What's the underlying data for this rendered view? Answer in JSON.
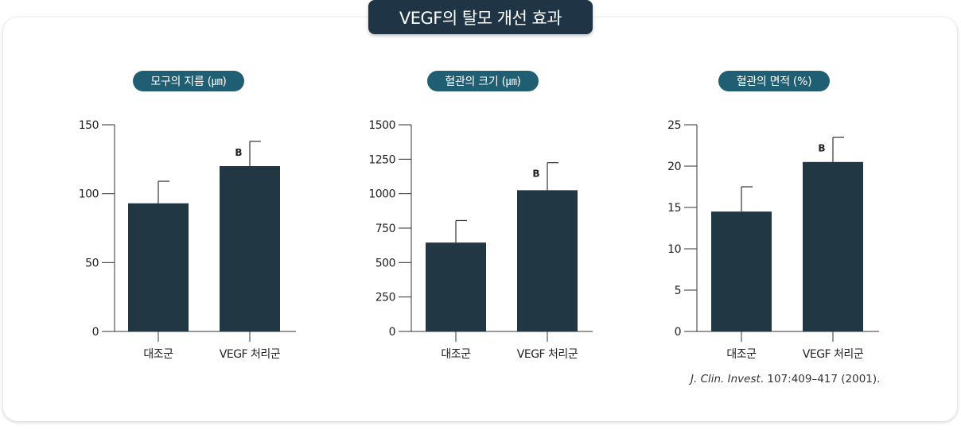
{
  "page_title": "VEGF의 탈모 개선 효과",
  "colors": {
    "bar": "#223744",
    "axis": "#333333",
    "pill": "#1f5e73",
    "title_bg": "#1f3545"
  },
  "chart_data": [
    {
      "type": "bar",
      "title": "모구의 지름 (㎛)",
      "categories": [
        "대조군",
        "VEGF 처리군"
      ],
      "values": [
        93,
        120
      ],
      "errors": [
        16,
        18
      ],
      "annotations": [
        "",
        "B"
      ],
      "ylim": [
        0,
        150
      ],
      "yticks": [
        0,
        50,
        100,
        150
      ],
      "ytick_labels": [
        "0",
        "50",
        "100",
        "150"
      ]
    },
    {
      "type": "bar",
      "title": "혈관의 크기 (㎛)",
      "categories": [
        "대조군",
        "VEGF 처리군"
      ],
      "values": [
        645,
        1025
      ],
      "errors": [
        160,
        200
      ],
      "annotations": [
        "",
        "B"
      ],
      "ylim": [
        0,
        1500
      ],
      "yticks": [
        0,
        250,
        500,
        750,
        1000,
        1250,
        1500
      ],
      "ytick_labels": [
        "0",
        "250",
        "500",
        "750",
        "1000",
        "1250",
        "1500"
      ]
    },
    {
      "type": "bar",
      "title": "혈관의 면적 (%)",
      "categories": [
        "대조군",
        "VEGF 처리군"
      ],
      "values": [
        14.5,
        20.5
      ],
      "errors": [
        3,
        3
      ],
      "annotations": [
        "",
        "B"
      ],
      "ylim": [
        0,
        25
      ],
      "yticks": [
        0,
        5,
        10,
        15,
        20,
        25
      ],
      "ytick_labels": [
        "0",
        "5",
        "10",
        "15",
        "20",
        "25"
      ]
    }
  ],
  "citation": {
    "journal": "J. Clin. Invest",
    "rest": ". 107:409–417 (2001)."
  }
}
